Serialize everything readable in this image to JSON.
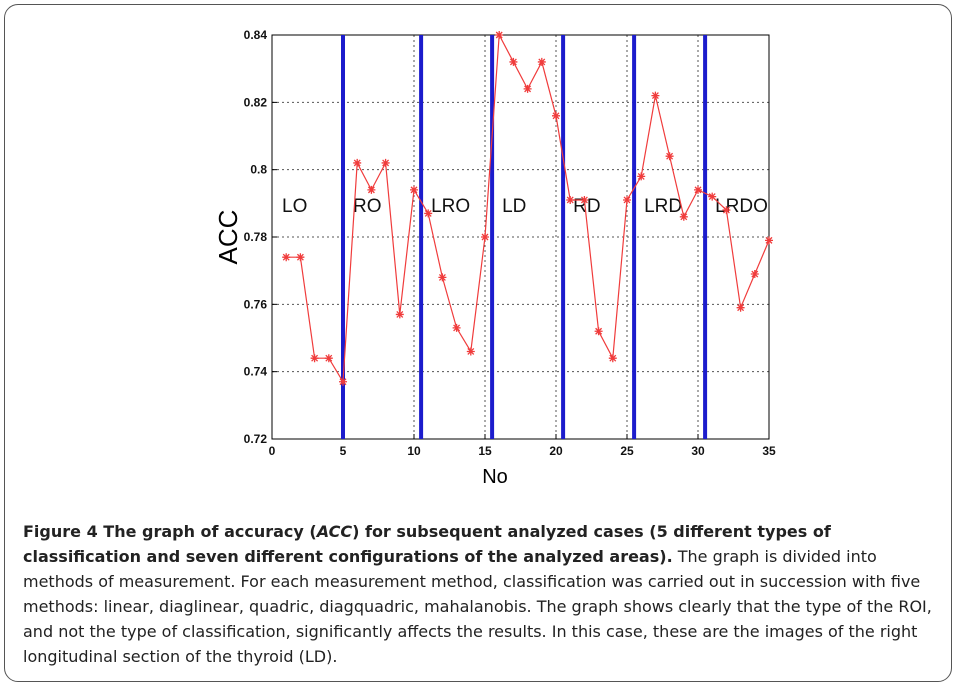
{
  "chart_data": {
    "type": "line",
    "x_label": "No",
    "y_label": "ACC",
    "x": [
      1,
      2,
      3,
      4,
      5,
      6,
      7,
      8,
      9,
      10,
      11,
      12,
      13,
      14,
      15,
      16,
      17,
      18,
      19,
      20,
      21,
      22,
      23,
      24,
      25,
      26,
      27,
      28,
      29,
      30,
      31,
      32,
      33,
      34,
      35
    ],
    "series": [
      {
        "name": "ACC",
        "color": "#f03c3c",
        "values": [
          0.774,
          0.774,
          0.744,
          0.744,
          0.737,
          0.802,
          0.794,
          0.802,
          0.757,
          0.794,
          0.787,
          0.768,
          0.753,
          0.746,
          0.78,
          0.84,
          0.832,
          0.824,
          0.832,
          0.816,
          0.791,
          0.791,
          0.752,
          0.744,
          0.791,
          0.798,
          0.822,
          0.804,
          0.786,
          0.794,
          0.792,
          0.788,
          0.759,
          0.769,
          0.779
        ]
      }
    ],
    "separators": [
      5,
      10.5,
      15.5,
      20.5,
      25.5,
      30.5
    ],
    "separator_color": "#1c1ccc",
    "regions": [
      "LO",
      "RO",
      "LRO",
      "LD",
      "RD",
      "LRD",
      "LRDO"
    ],
    "xlim": [
      0,
      35
    ],
    "ylim": [
      0.72,
      0.84
    ],
    "xticks": [
      0,
      5,
      10,
      15,
      20,
      25,
      30,
      35
    ],
    "yticks": [
      0.72,
      0.74,
      0.76,
      0.78,
      0.8,
      0.82,
      0.84
    ],
    "grid": true
  },
  "caption": {
    "title": [
      "Figure 4 The graph of accuracy (",
      "ACC",
      ") for subsequent analyzed cases (5 different types of classification and seven different configurations of the analyzed areas)."
    ],
    "text": "The graph is divided into methods of measurement. For each measurement method, classification was carried out in succession with five methods: linear, diaglinear, quadric, diagquadric, mahalanobis. The graph shows clearly that the type of the ROI, and not the type of classification, significantly affects the results. In this case, these are the images of the right longitudinal section of the thyroid (LD)."
  }
}
